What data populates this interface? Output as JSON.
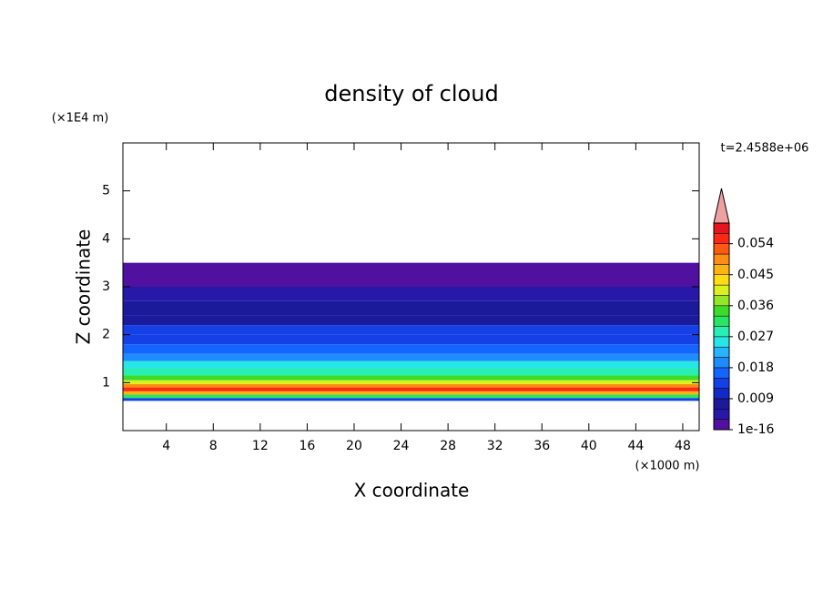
{
  "chart_data": {
    "type": "contour",
    "title": "density of cloud",
    "xlabel": "X coordinate",
    "ylabel": "Z coordinate",
    "x_unit": "(×1000 m)",
    "y_unit": "(×1E4 m)",
    "annotation": "t=2.4588e+06",
    "xlim": [
      0.3,
      49.4
    ],
    "xticks": [
      4,
      8,
      12,
      16,
      20,
      24,
      28,
      32,
      36,
      40,
      44,
      48
    ],
    "ylim": [
      0,
      6
    ],
    "yticks": [
      1,
      2,
      3,
      4,
      5
    ],
    "z_edges": [
      0.62,
      0.68,
      0.75,
      0.82,
      0.9,
      0.97,
      1.05,
      1.15,
      1.3,
      1.45,
      1.6,
      1.8,
      2.0,
      2.2,
      2.4,
      2.7,
      3.0,
      3.5
    ],
    "values": [
      0.012,
      0.03,
      0.045,
      0.054,
      0.05,
      0.04,
      0.033,
      0.028,
      0.024,
      0.02,
      0.016,
      0.014,
      0.012,
      0.008,
      0.006,
      0.004,
      0.001
    ],
    "levels": [
      0,
      0.003,
      0.006,
      0.009,
      0.012,
      0.015,
      0.018,
      0.021,
      0.024,
      0.027,
      0.03,
      0.033,
      0.036,
      0.039,
      0.042,
      0.045,
      0.048,
      0.051,
      0.054,
      0.057,
      0.06
    ],
    "colors": [
      "#5010a0",
      "#2818a8",
      "#1a1a9a",
      "#1428c8",
      "#1440e6",
      "#1464ff",
      "#1e8cff",
      "#28b4ff",
      "#28e6e6",
      "#28f0b4",
      "#28e664",
      "#3cdc28",
      "#96e628",
      "#dcf01e",
      "#ffdc14",
      "#ffb414",
      "#ff8c14",
      "#ff5a14",
      "#ff2814",
      "#e6141e"
    ],
    "extend_color": "#f0a0a0",
    "colorbar_ticks": [
      {
        "value": 1e-16,
        "label": "1e-16"
      },
      0.009,
      0.018,
      0.027,
      0.036,
      0.045,
      0.054
    ]
  }
}
